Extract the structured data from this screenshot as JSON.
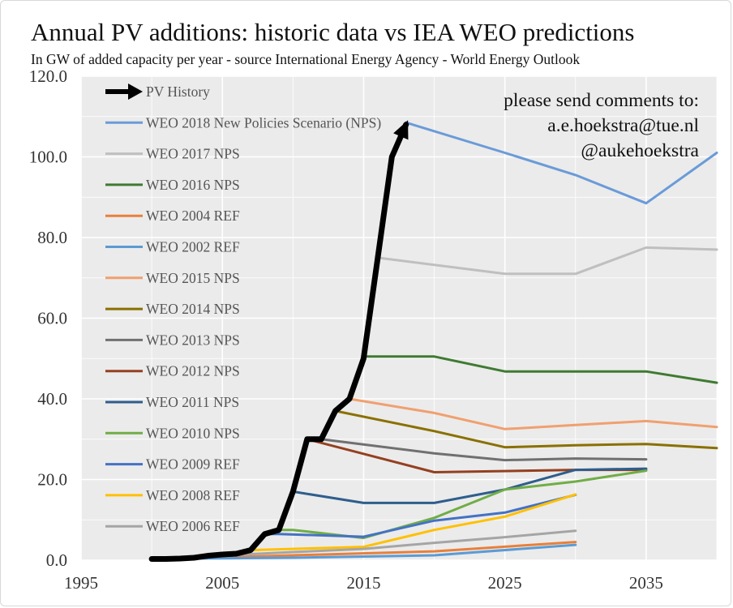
{
  "chart_data": {
    "type": "line",
    "title": "Annual PV additions: historic data vs IEA WEO predictions",
    "subtitle": "In GW of added capacity per year - source International Energy Agency - World Energy Outlook",
    "xlabel": "",
    "ylabel": "",
    "xlim": [
      1995,
      2040
    ],
    "ylim": [
      0,
      120
    ],
    "x_ticks": [
      "1995",
      "2005",
      "2015",
      "2025",
      "2035"
    ],
    "y_ticks": [
      "0.0",
      "20.0",
      "40.0",
      "60.0",
      "80.0",
      "100.0",
      "120.0"
    ],
    "grid": true,
    "legend_position": "top-left",
    "annotation": [
      "please send comments to:",
      "a.e.hoekstra@tue.nl",
      "@aukehoekstra"
    ],
    "series": [
      {
        "name": "PV History",
        "color": "#000000",
        "x": [
          2000,
          2001,
          2002,
          2003,
          2004,
          2005,
          2006,
          2007,
          2008,
          2009,
          2010,
          2011,
          2012,
          2013,
          2014,
          2015,
          2016,
          2017,
          2018
        ],
        "y": [
          0.3,
          0.3,
          0.4,
          0.6,
          1.1,
          1.4,
          1.6,
          2.5,
          6.5,
          7.5,
          17,
          30,
          30,
          37,
          40,
          50,
          75,
          100,
          108
        ]
      },
      {
        "name": "WEO 2018 New Policies Scenario (NPS)",
        "color": "#6a9bd8",
        "x": [
          2018,
          2025,
          2030,
          2035,
          2040
        ],
        "y": [
          108.5,
          101,
          95.5,
          88.5,
          101
        ]
      },
      {
        "name": "WEO 2017 NPS",
        "color": "#bfbfbf",
        "x": [
          2016,
          2025,
          2030,
          2035,
          2040
        ],
        "y": [
          75,
          71,
          71,
          77.5,
          77
        ]
      },
      {
        "name": "WEO 2016 NPS",
        "color": "#3f7a32",
        "x": [
          2015,
          2020,
          2025,
          2030,
          2035,
          2040
        ],
        "y": [
          50.5,
          50.5,
          46.8,
          46.8,
          46.8,
          44
        ]
      },
      {
        "name": "WEO 2004 REF",
        "color": "#e8803a",
        "x": [
          2002,
          2010,
          2020,
          2030
        ],
        "y": [
          0.4,
          1.2,
          2.2,
          4.5
        ]
      },
      {
        "name": "WEO 2002 REF",
        "color": "#5b9bd5",
        "x": [
          2000,
          2010,
          2020,
          2030
        ],
        "y": [
          0.3,
          0.6,
          1.2,
          3.8
        ]
      },
      {
        "name": "WEO 2015 NPS",
        "color": "#f0a070",
        "x": [
          2014,
          2020,
          2025,
          2030,
          2035,
          2040
        ],
        "y": [
          40,
          36.5,
          32.5,
          33.5,
          34.5,
          33
        ]
      },
      {
        "name": "WEO 2014 NPS",
        "color": "#8a7000",
        "x": [
          2013,
          2020,
          2025,
          2030,
          2035,
          2040
        ],
        "y": [
          37,
          32,
          28,
          28.5,
          28.8,
          27.8
        ]
      },
      {
        "name": "WEO 2013 NPS",
        "color": "#707070",
        "x": [
          2012,
          2020,
          2025,
          2030,
          2035
        ],
        "y": [
          30,
          26.5,
          24.8,
          25.2,
          25
        ]
      },
      {
        "name": "WEO 2012 NPS",
        "color": "#944020",
        "x": [
          2011,
          2020,
          2030,
          2035
        ],
        "y": [
          30,
          21.8,
          22.4,
          22.4
        ]
      },
      {
        "name": "WEO 2011 NPS",
        "color": "#2e5e8c",
        "x": [
          2010,
          2015,
          2020,
          2025,
          2030,
          2035
        ],
        "y": [
          17,
          14.2,
          14.2,
          17.5,
          22.4,
          22.7
        ]
      },
      {
        "name": "WEO 2010 NPS",
        "color": "#70ad47",
        "x": [
          2009,
          2010,
          2015,
          2020,
          2025,
          2030,
          2035
        ],
        "y": [
          7.5,
          7.5,
          5.5,
          10.5,
          17.5,
          19.5,
          22.2
        ]
      },
      {
        "name": "WEO 2009 REF",
        "color": "#4472c4",
        "x": [
          2008,
          2009,
          2015,
          2020,
          2025,
          2030
        ],
        "y": [
          6.5,
          6.5,
          5.8,
          9.8,
          11.8,
          16.2
        ]
      },
      {
        "name": "WEO 2008 REF",
        "color": "#ffc000",
        "x": [
          2007,
          2015,
          2020,
          2025,
          2030
        ],
        "y": [
          2.5,
          3.3,
          7.5,
          10.8,
          16.3
        ]
      },
      {
        "name": "WEO 2006 REF",
        "color": "#a5a5a5",
        "x": [
          2004,
          2010,
          2015,
          2020,
          2025,
          2030
        ],
        "y": [
          1.0,
          2.0,
          2.8,
          4.3,
          5.7,
          7.3
        ]
      }
    ]
  }
}
